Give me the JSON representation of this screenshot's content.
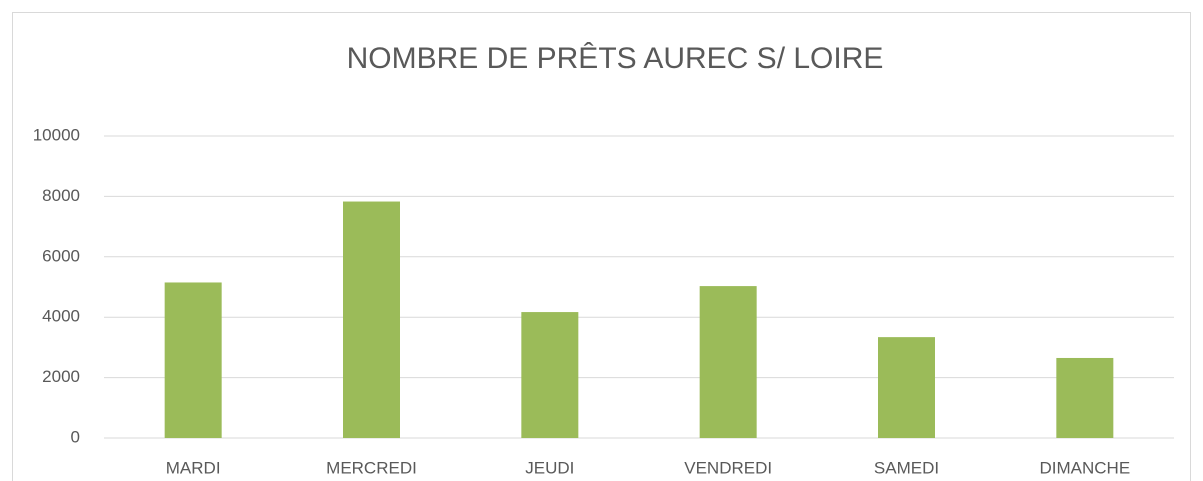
{
  "chart_data": {
    "type": "bar",
    "title": "NOMBRE DE PRÊTS AUREC S/ LOIRE",
    "categories": [
      "MARDI",
      "MERCREDI",
      "JEUDI",
      "VENDREDI",
      "SAMEDI",
      "DIMANCHE"
    ],
    "values": [
      5150,
      7830,
      4170,
      5030,
      3340,
      2650
    ],
    "color": "#9bbb59",
    "ylim": [
      0,
      10000
    ],
    "yticks": [
      0,
      2000,
      4000,
      6000,
      8000,
      10000
    ],
    "grid": true
  }
}
